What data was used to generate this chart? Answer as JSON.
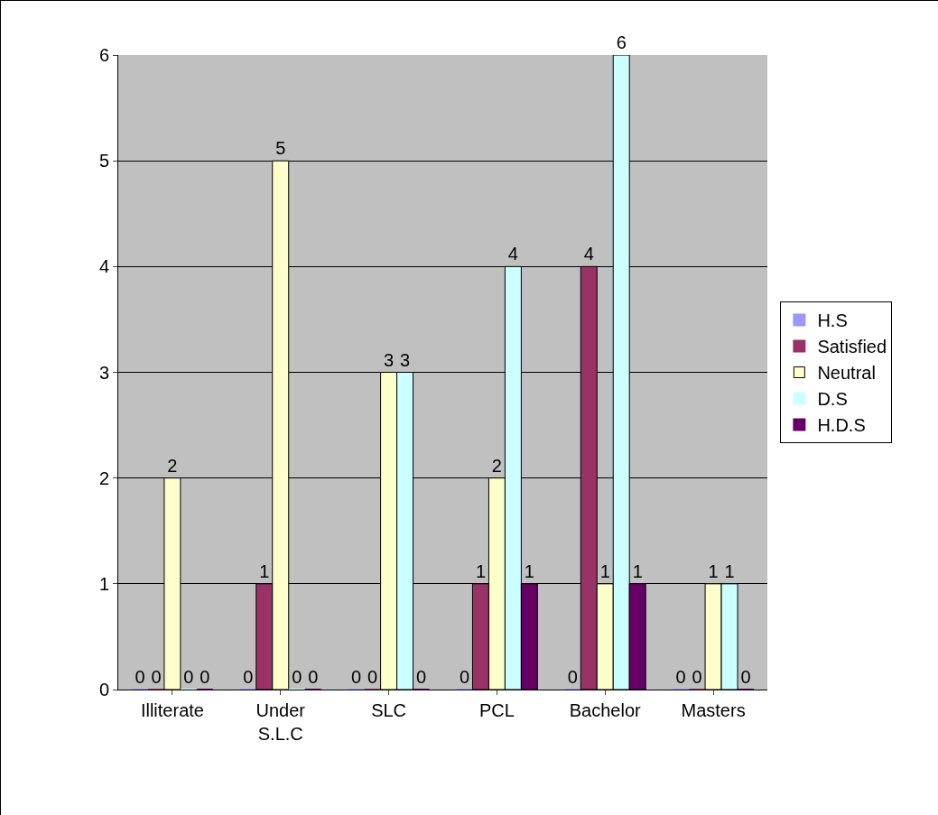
{
  "chart_data": {
    "type": "bar",
    "categories": [
      "Illiterate",
      "Under S.L.C",
      "SLC",
      "PCL",
      "Bachelor",
      "Masters"
    ],
    "series": [
      {
        "name": "H.S",
        "color": "#9999ff",
        "values": [
          0,
          0,
          0,
          0,
          0,
          0
        ]
      },
      {
        "name": "Satisfied",
        "color": "#993366",
        "values": [
          0,
          1,
          0,
          1,
          4,
          0
        ]
      },
      {
        "name": "Neutral",
        "color": "#ffffcc",
        "values": [
          2,
          5,
          3,
          2,
          1,
          1
        ]
      },
      {
        "name": "D.S",
        "color": "#ccffff",
        "values": [
          0,
          0,
          3,
          4,
          6,
          1
        ]
      },
      {
        "name": "H.D.S",
        "color": "#660066",
        "values": [
          0,
          0,
          0,
          1,
          1,
          0
        ]
      }
    ],
    "ylim": [
      0,
      6
    ],
    "yticks": [
      0,
      1,
      2,
      3,
      4,
      5,
      6
    ],
    "grid": "y",
    "legend": "right",
    "data_labels": true
  }
}
